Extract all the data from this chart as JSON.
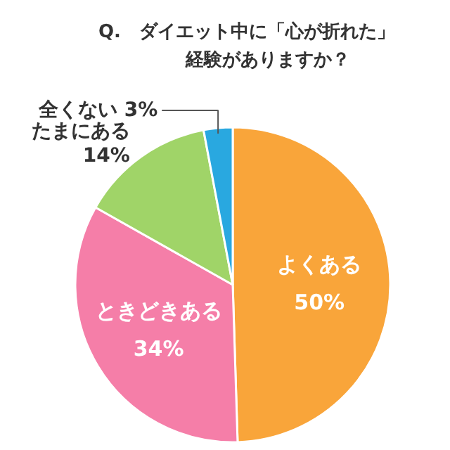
{
  "chart_data": {
    "type": "pie",
    "title": "Q.　ダイエット中に「心が折れた」",
    "subtitle": "経験がありますか？",
    "categories": [
      "よくある",
      "ときどきある",
      "たまにある",
      "全くない"
    ],
    "values": [
      50,
      34,
      14,
      3
    ],
    "value_labels": [
      "50%",
      "34%",
      "14%",
      "3%"
    ],
    "colors": [
      "#f9a53a",
      "#f57ea8",
      "#a0d468",
      "#29a8e0"
    ]
  }
}
